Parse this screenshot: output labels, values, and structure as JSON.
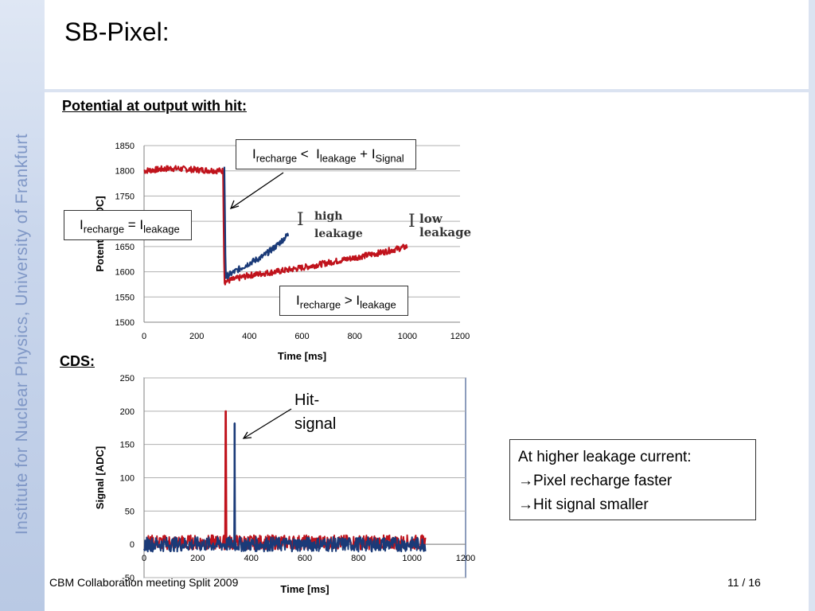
{
  "slide": {
    "title": "SB-Pixel:",
    "sidebar_text": "Institute for Nuclear Physics, University of Frankfurt",
    "section1": "Potential at output with hit:",
    "section2": "CDS:",
    "footer_left": "CBM Collaboration meeting Split 2009",
    "footer_right": "11 / 16"
  },
  "callouts": {
    "box1": {
      "a": "I",
      "a_sub": "recharge",
      "op": " <  ",
      "b": "I",
      "b_sub": "leakage",
      "plus": " + ",
      "c": "I",
      "c_sub": "Signal"
    },
    "box2": {
      "a": "I",
      "a_sub": "recharge",
      "op": " = ",
      "b": "I",
      "b_sub": "leakage"
    },
    "box3": {
      "a": "I",
      "a_sub": "recharge",
      "op": " > ",
      "b": "I",
      "b_sub": "leakage"
    },
    "high": {
      "main": "I",
      "sup": "high",
      "sub": "leakage"
    },
    "low": {
      "main": "I",
      "sup": "low",
      "sub": "leakage"
    },
    "hit": {
      "line1": "Hit-",
      "line2": "signal"
    }
  },
  "note": {
    "line1": "At higher leakage current:",
    "arrow": "→",
    "line2": "Pixel recharge faster",
    "line3": "Hit signal smaller"
  },
  "colors": {
    "red": "#c0131c",
    "blue": "#1a3a78",
    "grid": "#b0b0b0"
  },
  "chart_data": [
    {
      "type": "line",
      "xlabel": "Time [ms]",
      "ylabel": "Potential [ADC]",
      "xlim": [
        0,
        1200
      ],
      "ylim": [
        1500,
        1850
      ],
      "xticks": [
        0,
        200,
        400,
        600,
        800,
        1000,
        1200
      ],
      "yticks": [
        1500,
        1550,
        1600,
        1650,
        1700,
        1750,
        1800,
        1850
      ],
      "grid": true,
      "series": [
        {
          "color": "#c0131c",
          "x": [
            0,
            100,
            200,
            300,
            305,
            400,
            500,
            600,
            700,
            800,
            900,
            1000
          ],
          "y": [
            1800,
            1805,
            1802,
            1800,
            1580,
            1593,
            1600,
            1608,
            1618,
            1628,
            1638,
            1650
          ]
        },
        {
          "color": "#1a3a78",
          "x": [
            305,
            310,
            360,
            400,
            450,
            500,
            550
          ],
          "y": [
            1808,
            1590,
            1605,
            1617,
            1630,
            1650,
            1675
          ]
        }
      ]
    },
    {
      "type": "line",
      "xlabel": "Time [ms]",
      "ylabel": "Signal [ADC]",
      "xlim": [
        0,
        1200
      ],
      "ylim": [
        -50,
        250
      ],
      "xticks": [
        0,
        200,
        400,
        600,
        800,
        1000,
        1200
      ],
      "yticks": [
        -50,
        0,
        50,
        100,
        150,
        200,
        250
      ],
      "grid": true,
      "series": [
        {
          "color": "#c0131c",
          "baseline": 3,
          "spike": {
            "x": 305,
            "y": 200
          },
          "x_end": 1050
        },
        {
          "color": "#1a3a78",
          "baseline": 0,
          "spike": {
            "x": 338,
            "y": 182
          },
          "x_end": 1050
        }
      ]
    }
  ]
}
